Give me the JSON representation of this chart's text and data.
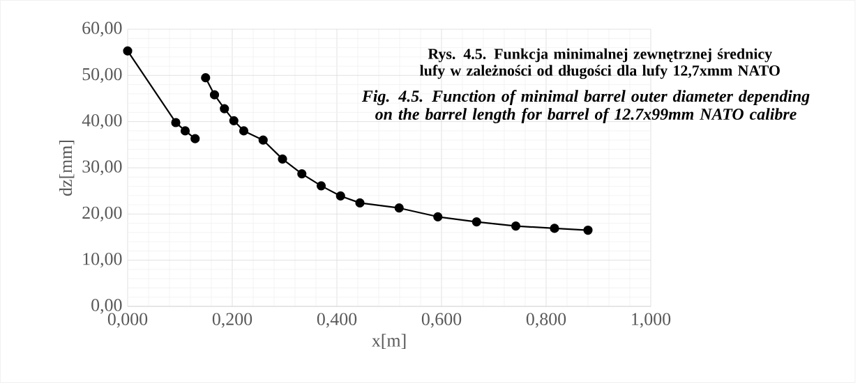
{
  "chart_data": {
    "type": "line",
    "title": "Rys. 4.5.  Funkcja minimalnej zewnętrznej średnicy lufy w zależności od długości dla lufy 12,7xmm NATO",
    "subtitle": "*Fig. 4.5. Function of minimal barrel outer diameter depending on the barrel length for barrel of 12.7x99mm NATO calibre*",
    "xlabel": "x[m]",
    "ylabel": "dz[mm]",
    "series": [
      {
        "color": "#000000",
        "x": [
          0.0,
          0.092,
          0.11,
          0.129
        ],
        "values": [
          55.3,
          39.8,
          38.0,
          36.3
        ]
      },
      {
        "color": "#000000",
        "x": [
          0.149,
          0.166,
          0.185,
          0.203,
          0.222,
          0.259,
          0.296,
          0.333,
          0.37,
          0.407,
          0.444,
          0.519,
          0.593,
          0.667,
          0.742,
          0.816,
          0.88
        ],
        "values": [
          49.5,
          45.8,
          42.8,
          40.2,
          38.0,
          36.0,
          31.9,
          28.7,
          26.1,
          23.9,
          22.4,
          21.3,
          19.4,
          18.3,
          17.4,
          16.9,
          16.5
        ]
      }
    ],
    "xlim": [
      0,
      1
    ],
    "ylim": [
      0,
      60
    ],
    "xticks": [
      {
        "value": 0,
        "label": "0,000"
      },
      {
        "value": 0.2,
        "label": "0,200"
      },
      {
        "value": 0.4,
        "label": "0,400"
      },
      {
        "value": 0.6,
        "label": "0,600"
      },
      {
        "value": 0.8,
        "label": "0,800"
      },
      {
        "value": 1,
        "label": "1,000"
      }
    ],
    "yticks": [
      {
        "value": 0,
        "label": "0,00"
      },
      {
        "value": 10,
        "label": "10,00"
      },
      {
        "value": 20,
        "label": "20,00"
      },
      {
        "value": 30,
        "label": "30,00"
      },
      {
        "value": 40,
        "label": "40,00"
      },
      {
        "value": 50,
        "label": "50,00"
      },
      {
        "value": 60,
        "label": "60,00"
      }
    ],
    "grid": true,
    "marker": "circle",
    "line_style": "solid"
  }
}
